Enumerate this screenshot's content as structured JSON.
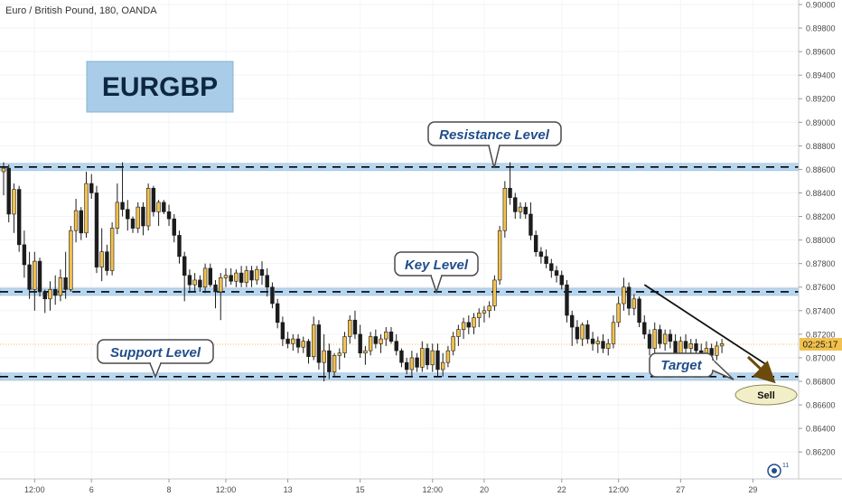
{
  "header": {
    "symbol_info": "Euro / British Pound, 180, OANDA"
  },
  "title_box": {
    "text": "EURGBP"
  },
  "annotations": {
    "resistance": "Resistance Level",
    "key": "Key Level",
    "support": "Support Level",
    "target": "Target",
    "sell": "Sell"
  },
  "price_tag": {
    "text": "02:25:17",
    "value": 0.87115
  },
  "badge": {
    "text": "11"
  },
  "colors": {
    "up_body": "#f2c14e",
    "down_body": "#1c1c1c",
    "level_band": "#b9d6ef",
    "level_line": "#000000",
    "price_tag": "#f2c14e",
    "title_box": "#a9cde8",
    "sell_ellipse": "#f2efc8",
    "arrow": "#6b4a0b"
  },
  "chart_data": {
    "type": "candlestick",
    "title": "Euro / British Pound, 180, OANDA",
    "y_axis": {
      "range": [
        0.8614,
        0.9
      ],
      "ticks": [
        "0.90000",
        "0.89800",
        "0.89600",
        "0.89400",
        "0.89200",
        "0.89000",
        "0.88800",
        "0.88600",
        "0.88400",
        "0.88200",
        "0.88000",
        "0.87800",
        "0.87600",
        "0.87400",
        "0.87200",
        "0.87000",
        "0.86800",
        "0.86600",
        "0.86400",
        "0.86200"
      ]
    },
    "x_axis": {
      "ticks": [
        "12:00",
        "6",
        "8",
        "12:00",
        "13",
        "15",
        "12:00",
        "20",
        "22",
        "12:00",
        "27",
        "29"
      ]
    },
    "levels": [
      {
        "name": "Resistance Level",
        "price": 0.8862
      },
      {
        "name": "Key Level",
        "price": 0.8756
      },
      {
        "name": "Support Level",
        "price": 0.8684
      }
    ],
    "trendline": {
      "start_bar": 124,
      "start_price": 0.8762,
      "end_bar": 148,
      "end_price": 0.8693
    },
    "candles": [
      {
        "o": 0.8858,
        "h": 0.8866,
        "l": 0.8838,
        "c": 0.8861
      },
      {
        "o": 0.8861,
        "h": 0.8864,
        "l": 0.8815,
        "c": 0.8822
      },
      {
        "o": 0.8822,
        "h": 0.8848,
        "l": 0.8806,
        "c": 0.8843
      },
      {
        "o": 0.8843,
        "h": 0.8846,
        "l": 0.879,
        "c": 0.8796
      },
      {
        "o": 0.8796,
        "h": 0.8808,
        "l": 0.8768,
        "c": 0.8779
      },
      {
        "o": 0.8779,
        "h": 0.879,
        "l": 0.875,
        "c": 0.8758
      },
      {
        "o": 0.8758,
        "h": 0.879,
        "l": 0.874,
        "c": 0.8782
      },
      {
        "o": 0.8782,
        "h": 0.8785,
        "l": 0.8752,
        "c": 0.8756
      },
      {
        "o": 0.8756,
        "h": 0.8758,
        "l": 0.8738,
        "c": 0.875
      },
      {
        "o": 0.875,
        "h": 0.8765,
        "l": 0.874,
        "c": 0.8758
      },
      {
        "o": 0.8758,
        "h": 0.877,
        "l": 0.8745,
        "c": 0.8753
      },
      {
        "o": 0.8753,
        "h": 0.8775,
        "l": 0.8748,
        "c": 0.8768
      },
      {
        "o": 0.8768,
        "h": 0.879,
        "l": 0.875,
        "c": 0.8758
      },
      {
        "o": 0.8758,
        "h": 0.8812,
        "l": 0.8756,
        "c": 0.8808
      },
      {
        "o": 0.8808,
        "h": 0.8835,
        "l": 0.8798,
        "c": 0.8825
      },
      {
        "o": 0.8825,
        "h": 0.8828,
        "l": 0.88,
        "c": 0.8806
      },
      {
        "o": 0.8806,
        "h": 0.8858,
        "l": 0.8802,
        "c": 0.8848
      },
      {
        "o": 0.8848,
        "h": 0.8856,
        "l": 0.8835,
        "c": 0.884
      },
      {
        "o": 0.884,
        "h": 0.8846,
        "l": 0.8772,
        "c": 0.8777
      },
      {
        "o": 0.8777,
        "h": 0.881,
        "l": 0.8765,
        "c": 0.879
      },
      {
        "o": 0.879,
        "h": 0.8796,
        "l": 0.877,
        "c": 0.8774
      },
      {
        "o": 0.8774,
        "h": 0.8815,
        "l": 0.877,
        "c": 0.881
      },
      {
        "o": 0.881,
        "h": 0.8848,
        "l": 0.8805,
        "c": 0.8832
      },
      {
        "o": 0.8832,
        "h": 0.8866,
        "l": 0.882,
        "c": 0.8826
      },
      {
        "o": 0.8826,
        "h": 0.8834,
        "l": 0.8808,
        "c": 0.8818
      },
      {
        "o": 0.8818,
        "h": 0.882,
        "l": 0.8806,
        "c": 0.881
      },
      {
        "o": 0.881,
        "h": 0.8832,
        "l": 0.8806,
        "c": 0.8828
      },
      {
        "o": 0.8828,
        "h": 0.8832,
        "l": 0.8804,
        "c": 0.8812
      },
      {
        "o": 0.8812,
        "h": 0.8848,
        "l": 0.8808,
        "c": 0.8844
      },
      {
        "o": 0.8844,
        "h": 0.8846,
        "l": 0.882,
        "c": 0.8824
      },
      {
        "o": 0.8824,
        "h": 0.8834,
        "l": 0.8812,
        "c": 0.8832
      },
      {
        "o": 0.8832,
        "h": 0.8834,
        "l": 0.8822,
        "c": 0.8824
      },
      {
        "o": 0.8824,
        "h": 0.883,
        "l": 0.8812,
        "c": 0.8818
      },
      {
        "o": 0.8818,
        "h": 0.8822,
        "l": 0.8798,
        "c": 0.8804
      },
      {
        "o": 0.8804,
        "h": 0.8808,
        "l": 0.878,
        "c": 0.8786
      },
      {
        "o": 0.8786,
        "h": 0.879,
        "l": 0.8748,
        "c": 0.877
      },
      {
        "o": 0.877,
        "h": 0.8775,
        "l": 0.8755,
        "c": 0.8762
      },
      {
        "o": 0.8762,
        "h": 0.8772,
        "l": 0.8756,
        "c": 0.8766
      },
      {
        "o": 0.8766,
        "h": 0.877,
        "l": 0.8756,
        "c": 0.876
      },
      {
        "o": 0.876,
        "h": 0.878,
        "l": 0.8755,
        "c": 0.8776
      },
      {
        "o": 0.8776,
        "h": 0.878,
        "l": 0.876,
        "c": 0.8762
      },
      {
        "o": 0.8762,
        "h": 0.8766,
        "l": 0.8742,
        "c": 0.8756
      },
      {
        "o": 0.8756,
        "h": 0.8772,
        "l": 0.8732,
        "c": 0.8768
      },
      {
        "o": 0.8768,
        "h": 0.8776,
        "l": 0.876,
        "c": 0.877
      },
      {
        "o": 0.877,
        "h": 0.8776,
        "l": 0.8762,
        "c": 0.8765
      },
      {
        "o": 0.8765,
        "h": 0.8775,
        "l": 0.876,
        "c": 0.8772
      },
      {
        "o": 0.8772,
        "h": 0.8778,
        "l": 0.876,
        "c": 0.8764
      },
      {
        "o": 0.8764,
        "h": 0.8778,
        "l": 0.876,
        "c": 0.8774
      },
      {
        "o": 0.8774,
        "h": 0.8778,
        "l": 0.876,
        "c": 0.8766
      },
      {
        "o": 0.8766,
        "h": 0.8778,
        "l": 0.8762,
        "c": 0.8775
      },
      {
        "o": 0.8775,
        "h": 0.8782,
        "l": 0.8762,
        "c": 0.877
      },
      {
        "o": 0.877,
        "h": 0.8776,
        "l": 0.8752,
        "c": 0.876
      },
      {
        "o": 0.876,
        "h": 0.8764,
        "l": 0.8742,
        "c": 0.8746
      },
      {
        "o": 0.8746,
        "h": 0.875,
        "l": 0.8725,
        "c": 0.873
      },
      {
        "o": 0.873,
        "h": 0.8735,
        "l": 0.871,
        "c": 0.8716
      },
      {
        "o": 0.8716,
        "h": 0.8722,
        "l": 0.8708,
        "c": 0.8712
      },
      {
        "o": 0.8712,
        "h": 0.872,
        "l": 0.8706,
        "c": 0.8716
      },
      {
        "o": 0.8716,
        "h": 0.872,
        "l": 0.8704,
        "c": 0.8709
      },
      {
        "o": 0.8709,
        "h": 0.8718,
        "l": 0.8704,
        "c": 0.8714
      },
      {
        "o": 0.8714,
        "h": 0.8716,
        "l": 0.8695,
        "c": 0.8701
      },
      {
        "o": 0.8701,
        "h": 0.8735,
        "l": 0.8698,
        "c": 0.8728
      },
      {
        "o": 0.8728,
        "h": 0.8732,
        "l": 0.869,
        "c": 0.8696
      },
      {
        "o": 0.8696,
        "h": 0.872,
        "l": 0.868,
        "c": 0.8706
      },
      {
        "o": 0.8706,
        "h": 0.8712,
        "l": 0.8682,
        "c": 0.8688
      },
      {
        "o": 0.8688,
        "h": 0.8704,
        "l": 0.8684,
        "c": 0.8702
      },
      {
        "o": 0.8702,
        "h": 0.8708,
        "l": 0.869,
        "c": 0.8704
      },
      {
        "o": 0.8704,
        "h": 0.8722,
        "l": 0.87,
        "c": 0.8718
      },
      {
        "o": 0.8718,
        "h": 0.8736,
        "l": 0.8712,
        "c": 0.8732
      },
      {
        "o": 0.8732,
        "h": 0.874,
        "l": 0.8716,
        "c": 0.872
      },
      {
        "o": 0.872,
        "h": 0.8728,
        "l": 0.87,
        "c": 0.8704
      },
      {
        "o": 0.8704,
        "h": 0.871,
        "l": 0.8694,
        "c": 0.8706
      },
      {
        "o": 0.8706,
        "h": 0.8722,
        "l": 0.8702,
        "c": 0.8718
      },
      {
        "o": 0.8718,
        "h": 0.8724,
        "l": 0.8708,
        "c": 0.8712
      },
      {
        "o": 0.8712,
        "h": 0.872,
        "l": 0.8704,
        "c": 0.8716
      },
      {
        "o": 0.8716,
        "h": 0.8726,
        "l": 0.871,
        "c": 0.8722
      },
      {
        "o": 0.8722,
        "h": 0.8726,
        "l": 0.8712,
        "c": 0.8714
      },
      {
        "o": 0.8714,
        "h": 0.872,
        "l": 0.8702,
        "c": 0.8706
      },
      {
        "o": 0.8706,
        "h": 0.8708,
        "l": 0.8692,
        "c": 0.8696
      },
      {
        "o": 0.8696,
        "h": 0.87,
        "l": 0.8686,
        "c": 0.869
      },
      {
        "o": 0.869,
        "h": 0.8706,
        "l": 0.8684,
        "c": 0.87
      },
      {
        "o": 0.87,
        "h": 0.8704,
        "l": 0.8688,
        "c": 0.8692
      },
      {
        "o": 0.8692,
        "h": 0.8714,
        "l": 0.8688,
        "c": 0.8708
      },
      {
        "o": 0.8708,
        "h": 0.8712,
        "l": 0.869,
        "c": 0.8694
      },
      {
        "o": 0.8694,
        "h": 0.8712,
        "l": 0.8688,
        "c": 0.8706
      },
      {
        "o": 0.8706,
        "h": 0.8712,
        "l": 0.8684,
        "c": 0.869
      },
      {
        "o": 0.869,
        "h": 0.8704,
        "l": 0.8684,
        "c": 0.8696
      },
      {
        "o": 0.8696,
        "h": 0.871,
        "l": 0.8692,
        "c": 0.8706
      },
      {
        "o": 0.8706,
        "h": 0.8722,
        "l": 0.8702,
        "c": 0.8718
      },
      {
        "o": 0.8718,
        "h": 0.8728,
        "l": 0.871,
        "c": 0.8724
      },
      {
        "o": 0.8724,
        "h": 0.8734,
        "l": 0.8716,
        "c": 0.873
      },
      {
        "o": 0.873,
        "h": 0.8736,
        "l": 0.872,
        "c": 0.8726
      },
      {
        "o": 0.8726,
        "h": 0.8738,
        "l": 0.872,
        "c": 0.8734
      },
      {
        "o": 0.8734,
        "h": 0.8742,
        "l": 0.8726,
        "c": 0.8738
      },
      {
        "o": 0.8738,
        "h": 0.8744,
        "l": 0.873,
        "c": 0.874
      },
      {
        "o": 0.874,
        "h": 0.8748,
        "l": 0.8734,
        "c": 0.8744
      },
      {
        "o": 0.8744,
        "h": 0.877,
        "l": 0.874,
        "c": 0.8766
      },
      {
        "o": 0.8766,
        "h": 0.8812,
        "l": 0.8762,
        "c": 0.8808
      },
      {
        "o": 0.8808,
        "h": 0.885,
        "l": 0.8802,
        "c": 0.8844
      },
      {
        "o": 0.8844,
        "h": 0.8866,
        "l": 0.883,
        "c": 0.8836
      },
      {
        "o": 0.8836,
        "h": 0.884,
        "l": 0.8818,
        "c": 0.8824
      },
      {
        "o": 0.8824,
        "h": 0.8832,
        "l": 0.8818,
        "c": 0.8828
      },
      {
        "o": 0.8828,
        "h": 0.8832,
        "l": 0.8818,
        "c": 0.8822
      },
      {
        "o": 0.8822,
        "h": 0.8832,
        "l": 0.88,
        "c": 0.8804
      },
      {
        "o": 0.8804,
        "h": 0.8808,
        "l": 0.8786,
        "c": 0.879
      },
      {
        "o": 0.879,
        "h": 0.8794,
        "l": 0.878,
        "c": 0.8786
      },
      {
        "o": 0.8786,
        "h": 0.8792,
        "l": 0.8776,
        "c": 0.878
      },
      {
        "o": 0.878,
        "h": 0.8784,
        "l": 0.8768,
        "c": 0.8774
      },
      {
        "o": 0.8774,
        "h": 0.8778,
        "l": 0.8764,
        "c": 0.877
      },
      {
        "o": 0.877,
        "h": 0.8774,
        "l": 0.8758,
        "c": 0.8762
      },
      {
        "o": 0.8762,
        "h": 0.8766,
        "l": 0.873,
        "c": 0.8736
      },
      {
        "o": 0.8736,
        "h": 0.874,
        "l": 0.871,
        "c": 0.8726
      },
      {
        "o": 0.8726,
        "h": 0.8732,
        "l": 0.8712,
        "c": 0.8716
      },
      {
        "o": 0.8716,
        "h": 0.873,
        "l": 0.871,
        "c": 0.8728
      },
      {
        "o": 0.8728,
        "h": 0.8732,
        "l": 0.8712,
        "c": 0.8716
      },
      {
        "o": 0.8716,
        "h": 0.8722,
        "l": 0.8706,
        "c": 0.8712
      },
      {
        "o": 0.8712,
        "h": 0.8718,
        "l": 0.8704,
        "c": 0.8714
      },
      {
        "o": 0.8714,
        "h": 0.872,
        "l": 0.8704,
        "c": 0.8708
      },
      {
        "o": 0.8708,
        "h": 0.8716,
        "l": 0.8702,
        "c": 0.8712
      },
      {
        "o": 0.8712,
        "h": 0.8736,
        "l": 0.8708,
        "c": 0.873
      },
      {
        "o": 0.873,
        "h": 0.8752,
        "l": 0.8726,
        "c": 0.8746
      },
      {
        "o": 0.8746,
        "h": 0.8768,
        "l": 0.874,
        "c": 0.876
      },
      {
        "o": 0.876,
        "h": 0.8764,
        "l": 0.8736,
        "c": 0.8742
      },
      {
        "o": 0.8742,
        "h": 0.8754,
        "l": 0.8736,
        "c": 0.875
      },
      {
        "o": 0.875,
        "h": 0.8752,
        "l": 0.8726,
        "c": 0.873
      },
      {
        "o": 0.873,
        "h": 0.8736,
        "l": 0.8716,
        "c": 0.872
      },
      {
        "o": 0.872,
        "h": 0.8724,
        "l": 0.8702,
        "c": 0.8708
      },
      {
        "o": 0.8708,
        "h": 0.873,
        "l": 0.8704,
        "c": 0.8724
      },
      {
        "o": 0.8724,
        "h": 0.8728,
        "l": 0.8708,
        "c": 0.8712
      },
      {
        "o": 0.8712,
        "h": 0.8724,
        "l": 0.8706,
        "c": 0.872
      },
      {
        "o": 0.872,
        "h": 0.8724,
        "l": 0.8708,
        "c": 0.8714
      },
      {
        "o": 0.8714,
        "h": 0.872,
        "l": 0.8698,
        "c": 0.8704
      },
      {
        "o": 0.8704,
        "h": 0.8718,
        "l": 0.87,
        "c": 0.8714
      },
      {
        "o": 0.8714,
        "h": 0.872,
        "l": 0.8704,
        "c": 0.8708
      },
      {
        "o": 0.8708,
        "h": 0.8716,
        "l": 0.8704,
        "c": 0.8712
      },
      {
        "o": 0.8712,
        "h": 0.8716,
        "l": 0.87,
        "c": 0.8706
      },
      {
        "o": 0.8706,
        "h": 0.8712,
        "l": 0.8692,
        "c": 0.8696
      },
      {
        "o": 0.8696,
        "h": 0.8714,
        "l": 0.869,
        "c": 0.8708
      },
      {
        "o": 0.8708,
        "h": 0.8712,
        "l": 0.8696,
        "c": 0.8702
      },
      {
        "o": 0.8702,
        "h": 0.8714,
        "l": 0.8698,
        "c": 0.871
      },
      {
        "o": 0.871,
        "h": 0.8716,
        "l": 0.8704,
        "c": 0.8712
      }
    ]
  }
}
